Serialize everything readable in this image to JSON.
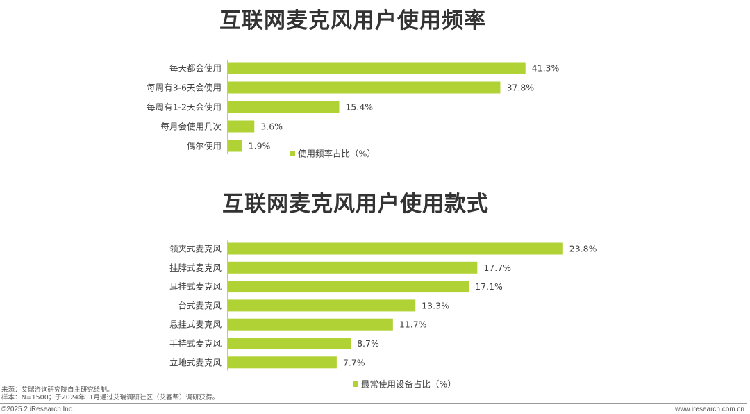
{
  "chart_data": [
    {
      "type": "bar",
      "orientation": "horizontal",
      "title": "互联网麦克风用户使用频率",
      "categories": [
        "每天都会使用",
        "每周有3-6天会使用",
        "每周有1-2天会使用",
        "每月会使用几次",
        "偶尔使用"
      ],
      "values": [
        41.3,
        37.8,
        15.4,
        3.6,
        1.9
      ],
      "value_labels": [
        "41.3%",
        "37.8%",
        "15.4%",
        "3.6%",
        "1.9%"
      ],
      "legend": "使用频率占比（%）",
      "legend_position": "bottom-center",
      "xlim": [
        0,
        45
      ],
      "color": "#b0d235",
      "grid": false
    },
    {
      "type": "bar",
      "orientation": "horizontal",
      "title": "互联网麦克风用户使用款式",
      "categories": [
        "领夹式麦克风",
        "挂脖式麦克风",
        "耳挂式麦克风",
        "台式麦克风",
        "悬挂式麦克风",
        "手持式麦克风",
        "立地式麦克风"
      ],
      "values": [
        23.8,
        17.7,
        17.1,
        13.3,
        11.7,
        8.7,
        7.7
      ],
      "value_labels": [
        "23.8%",
        "17.7%",
        "17.1%",
        "13.3%",
        "11.7%",
        "8.7%",
        "7.7%"
      ],
      "legend": "最常使用设备占比（%）",
      "legend_position": "bottom-center",
      "xlim": [
        0,
        24.6
      ],
      "color": "#b0d235",
      "grid": false
    }
  ],
  "footer": {
    "source": "来源：艾瑞咨询研究院自主研究绘制。",
    "sample": "样本：N=1500；于2024年11月通过艾瑞调研社区（艾客帮）调研获得。",
    "copyright": "©2025.2 iResearch Inc.",
    "website": "www.iresearch.com.cn"
  }
}
